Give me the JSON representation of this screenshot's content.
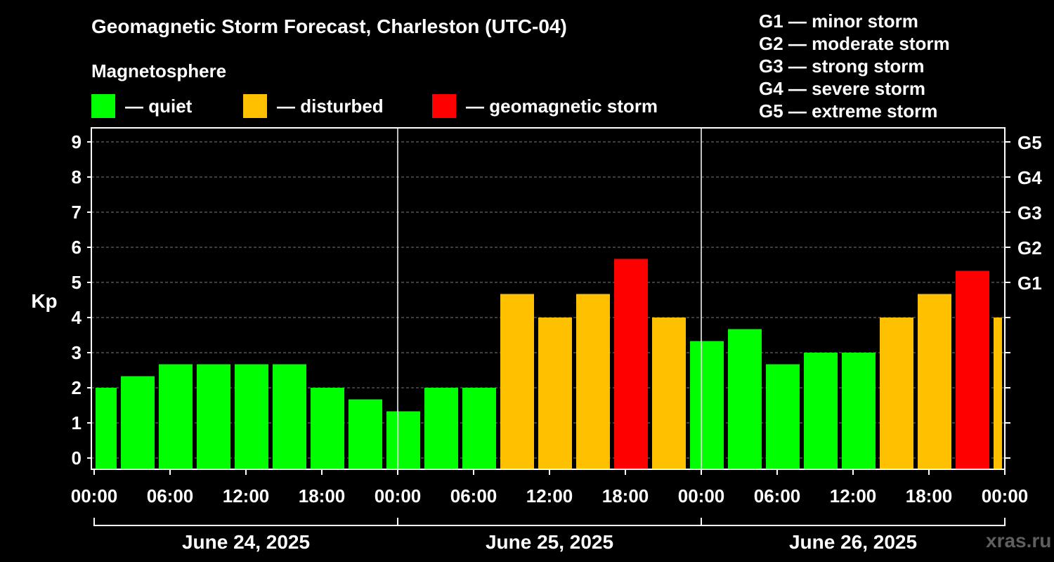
{
  "title": "Geomagnetic Storm Forecast, Charleston (UTC-04)",
  "subtitle": "Magnetosphere",
  "legend": [
    {
      "label": "— quiet",
      "color": "#00ff00"
    },
    {
      "label": "— disturbed",
      "color": "#ffc000"
    },
    {
      "label": "— geomagnetic storm",
      "color": "#ff0000"
    }
  ],
  "g_scale_legend": [
    "G1 — minor storm",
    "G2 — moderate storm",
    "G3 — strong storm",
    "G4 — severe storm",
    "G5 — extreme storm"
  ],
  "credit": "xras.ru",
  "colors": {
    "quiet": "#00ff00",
    "disturbed": "#ffc000",
    "storm": "#ff0000"
  },
  "chart_data": {
    "type": "bar",
    "ylabel": "Kp",
    "ylim": [
      0,
      9
    ],
    "yticks": [
      "0",
      "1",
      "2",
      "3",
      "4",
      "5",
      "6",
      "7",
      "8",
      "9"
    ],
    "right_ticks": [
      {
        "kp": 5,
        "label": "G1"
      },
      {
        "kp": 6,
        "label": "G2"
      },
      {
        "kp": 7,
        "label": "G3"
      },
      {
        "kp": 8,
        "label": "G4"
      },
      {
        "kp": 9,
        "label": "G5"
      }
    ],
    "grid": "dashed horizontal at each Kp level",
    "x_tick_labels": [
      "00:00",
      "06:00",
      "12:00",
      "18:00",
      "00:00",
      "06:00",
      "12:00",
      "18:00",
      "00:00",
      "06:00",
      "12:00",
      "18:00",
      "00:00"
    ],
    "days": [
      "June 24, 2025",
      "June 25, 2025",
      "June 26, 2025"
    ],
    "bars": [
      {
        "start_hour": 0,
        "kp": 2.0,
        "level": "quiet"
      },
      {
        "start_hour": 2,
        "kp": 2.33,
        "level": "quiet"
      },
      {
        "start_hour": 5,
        "kp": 2.67,
        "level": "quiet"
      },
      {
        "start_hour": 8,
        "kp": 2.67,
        "level": "quiet"
      },
      {
        "start_hour": 11,
        "kp": 2.67,
        "level": "quiet"
      },
      {
        "start_hour": 14,
        "kp": 2.67,
        "level": "quiet"
      },
      {
        "start_hour": 17,
        "kp": 2.0,
        "level": "quiet"
      },
      {
        "start_hour": 20,
        "kp": 1.67,
        "level": "quiet"
      },
      {
        "start_hour": 23,
        "kp": 1.33,
        "level": "quiet"
      },
      {
        "start_hour": 26,
        "kp": 2.0,
        "level": "quiet"
      },
      {
        "start_hour": 29,
        "kp": 2.0,
        "level": "quiet"
      },
      {
        "start_hour": 32,
        "kp": 4.67,
        "level": "disturbed"
      },
      {
        "start_hour": 35,
        "kp": 4.0,
        "level": "disturbed"
      },
      {
        "start_hour": 38,
        "kp": 4.67,
        "level": "disturbed"
      },
      {
        "start_hour": 41,
        "kp": 5.67,
        "level": "storm"
      },
      {
        "start_hour": 44,
        "kp": 4.0,
        "level": "disturbed"
      },
      {
        "start_hour": 47,
        "kp": 3.33,
        "level": "quiet"
      },
      {
        "start_hour": 50,
        "kp": 3.67,
        "level": "quiet"
      },
      {
        "start_hour": 53,
        "kp": 2.67,
        "level": "quiet"
      },
      {
        "start_hour": 56,
        "kp": 3.0,
        "level": "quiet"
      },
      {
        "start_hour": 59,
        "kp": 3.0,
        "level": "quiet"
      },
      {
        "start_hour": 62,
        "kp": 4.0,
        "level": "disturbed"
      },
      {
        "start_hour": 65,
        "kp": 4.67,
        "level": "disturbed"
      },
      {
        "start_hour": 68,
        "kp": 5.33,
        "level": "storm"
      },
      {
        "start_hour": 71,
        "kp": 4.0,
        "level": "disturbed"
      }
    ]
  }
}
